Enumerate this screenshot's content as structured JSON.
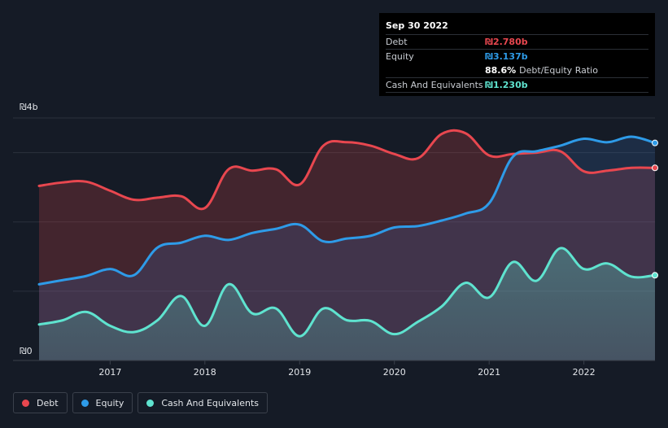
{
  "tooltip": {
    "date": "Sep 30 2022",
    "rows": [
      {
        "label": "Debt",
        "value": "₪2.780b",
        "color": "#e8474f"
      },
      {
        "label": "Equity",
        "value": "₪3.137b",
        "color": "#2e9be8"
      },
      {
        "label": "",
        "value": "88.6%",
        "suffix": "Debt/Equity Ratio",
        "color": "#ffffff"
      },
      {
        "label": "Cash And Equivalents",
        "value": "₪1.230b",
        "color": "#5fe3cf"
      }
    ]
  },
  "legend": [
    {
      "label": "Debt",
      "color": "#e8474f"
    },
    {
      "label": "Equity",
      "color": "#2e9be8"
    },
    {
      "label": "Cash And Equivalents",
      "color": "#5fe3cf"
    }
  ],
  "chart_data": {
    "type": "area",
    "ytick_labels": [
      "₪4b",
      "₪0"
    ],
    "ylim": [
      0,
      3.5
    ],
    "xlim": [
      2016.25,
      2022.75
    ],
    "x_ticks": [
      2017,
      2018,
      2019,
      2020,
      2021,
      2022
    ],
    "x_tick_labels": [
      "2017",
      "2018",
      "2019",
      "2020",
      "2021",
      "2022"
    ],
    "grid": true,
    "legend_position": "bottom-left",
    "series": [
      {
        "name": "Debt",
        "color": "#e8474f",
        "x": [
          2016.25,
          2016.5,
          2016.75,
          2017.0,
          2017.25,
          2017.5,
          2017.75,
          2018.0,
          2018.25,
          2018.5,
          2018.75,
          2019.0,
          2019.25,
          2019.5,
          2019.75,
          2020.0,
          2020.25,
          2020.5,
          2020.75,
          2021.0,
          2021.25,
          2021.5,
          2021.75,
          2022.0,
          2022.25,
          2022.5,
          2022.75
        ],
        "values": [
          2.52,
          2.57,
          2.58,
          2.45,
          2.32,
          2.35,
          2.37,
          2.2,
          2.76,
          2.74,
          2.76,
          2.54,
          3.1,
          3.15,
          3.1,
          2.98,
          2.92,
          3.27,
          3.28,
          2.96,
          2.98,
          3.0,
          3.02,
          2.73,
          2.74,
          2.78,
          2.78
        ]
      },
      {
        "name": "Equity",
        "color": "#2e9be8",
        "x": [
          2016.25,
          2016.5,
          2016.75,
          2017.0,
          2017.25,
          2017.5,
          2017.75,
          2018.0,
          2018.25,
          2018.5,
          2018.75,
          2019.0,
          2019.25,
          2019.5,
          2019.75,
          2020.0,
          2020.25,
          2020.5,
          2020.75,
          2021.0,
          2021.25,
          2021.5,
          2021.75,
          2022.0,
          2022.25,
          2022.5,
          2022.75
        ],
        "values": [
          1.1,
          1.16,
          1.22,
          1.32,
          1.23,
          1.63,
          1.7,
          1.8,
          1.74,
          1.84,
          1.9,
          1.96,
          1.72,
          1.76,
          1.8,
          1.92,
          1.94,
          2.02,
          2.12,
          2.27,
          2.94,
          3.02,
          3.1,
          3.2,
          3.15,
          3.23,
          3.14
        ]
      },
      {
        "name": "Cash And Equivalents",
        "color": "#5fe3cf",
        "x": [
          2016.25,
          2016.5,
          2016.75,
          2017.0,
          2017.25,
          2017.5,
          2017.75,
          2018.0,
          2018.25,
          2018.5,
          2018.75,
          2019.0,
          2019.25,
          2019.5,
          2019.75,
          2020.0,
          2020.25,
          2020.5,
          2020.75,
          2021.0,
          2021.25,
          2021.5,
          2021.75,
          2022.0,
          2022.25,
          2022.5,
          2022.75
        ],
        "values": [
          0.52,
          0.58,
          0.7,
          0.5,
          0.41,
          0.58,
          0.93,
          0.5,
          1.1,
          0.68,
          0.75,
          0.35,
          0.75,
          0.58,
          0.57,
          0.38,
          0.56,
          0.78,
          1.12,
          0.91,
          1.42,
          1.15,
          1.62,
          1.32,
          1.4,
          1.21,
          1.23
        ]
      }
    ]
  }
}
